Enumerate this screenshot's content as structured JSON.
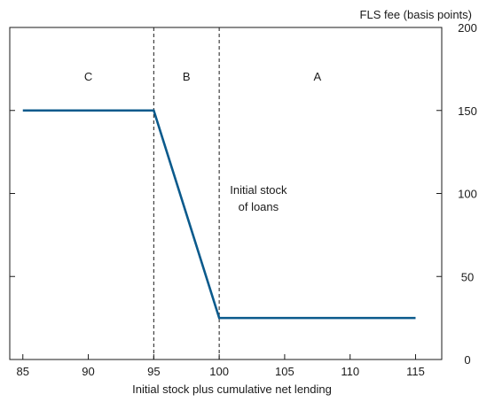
{
  "chart_data": {
    "type": "line",
    "xlabel": "Initial stock plus cumulative net lending",
    "ylabel": "FLS fee (basis points)",
    "xlim": [
      84,
      117
    ],
    "ylim": [
      0,
      200
    ],
    "x_ticks": [
      85,
      90,
      95,
      100,
      105,
      110,
      115
    ],
    "y_ticks": [
      0,
      50,
      100,
      150,
      200
    ],
    "y_axis_side": "right",
    "grid": false,
    "series": [
      {
        "color": "#0b5a8c",
        "points": [
          [
            85,
            150
          ],
          [
            95,
            150
          ],
          [
            100,
            25
          ],
          [
            115,
            25
          ]
        ]
      }
    ],
    "reference_lines": [
      {
        "axis": "x",
        "value": 95,
        "style": "dashed"
      },
      {
        "axis": "x",
        "value": 100,
        "style": "dashed"
      }
    ],
    "regions": [
      {
        "label": "C",
        "x": 90
      },
      {
        "label": "B",
        "x": 97.5
      },
      {
        "label": "A",
        "x": 107.5
      }
    ],
    "annotation": {
      "lines": [
        "Initial stock",
        "of loans"
      ],
      "x": 103,
      "y": 100
    }
  }
}
